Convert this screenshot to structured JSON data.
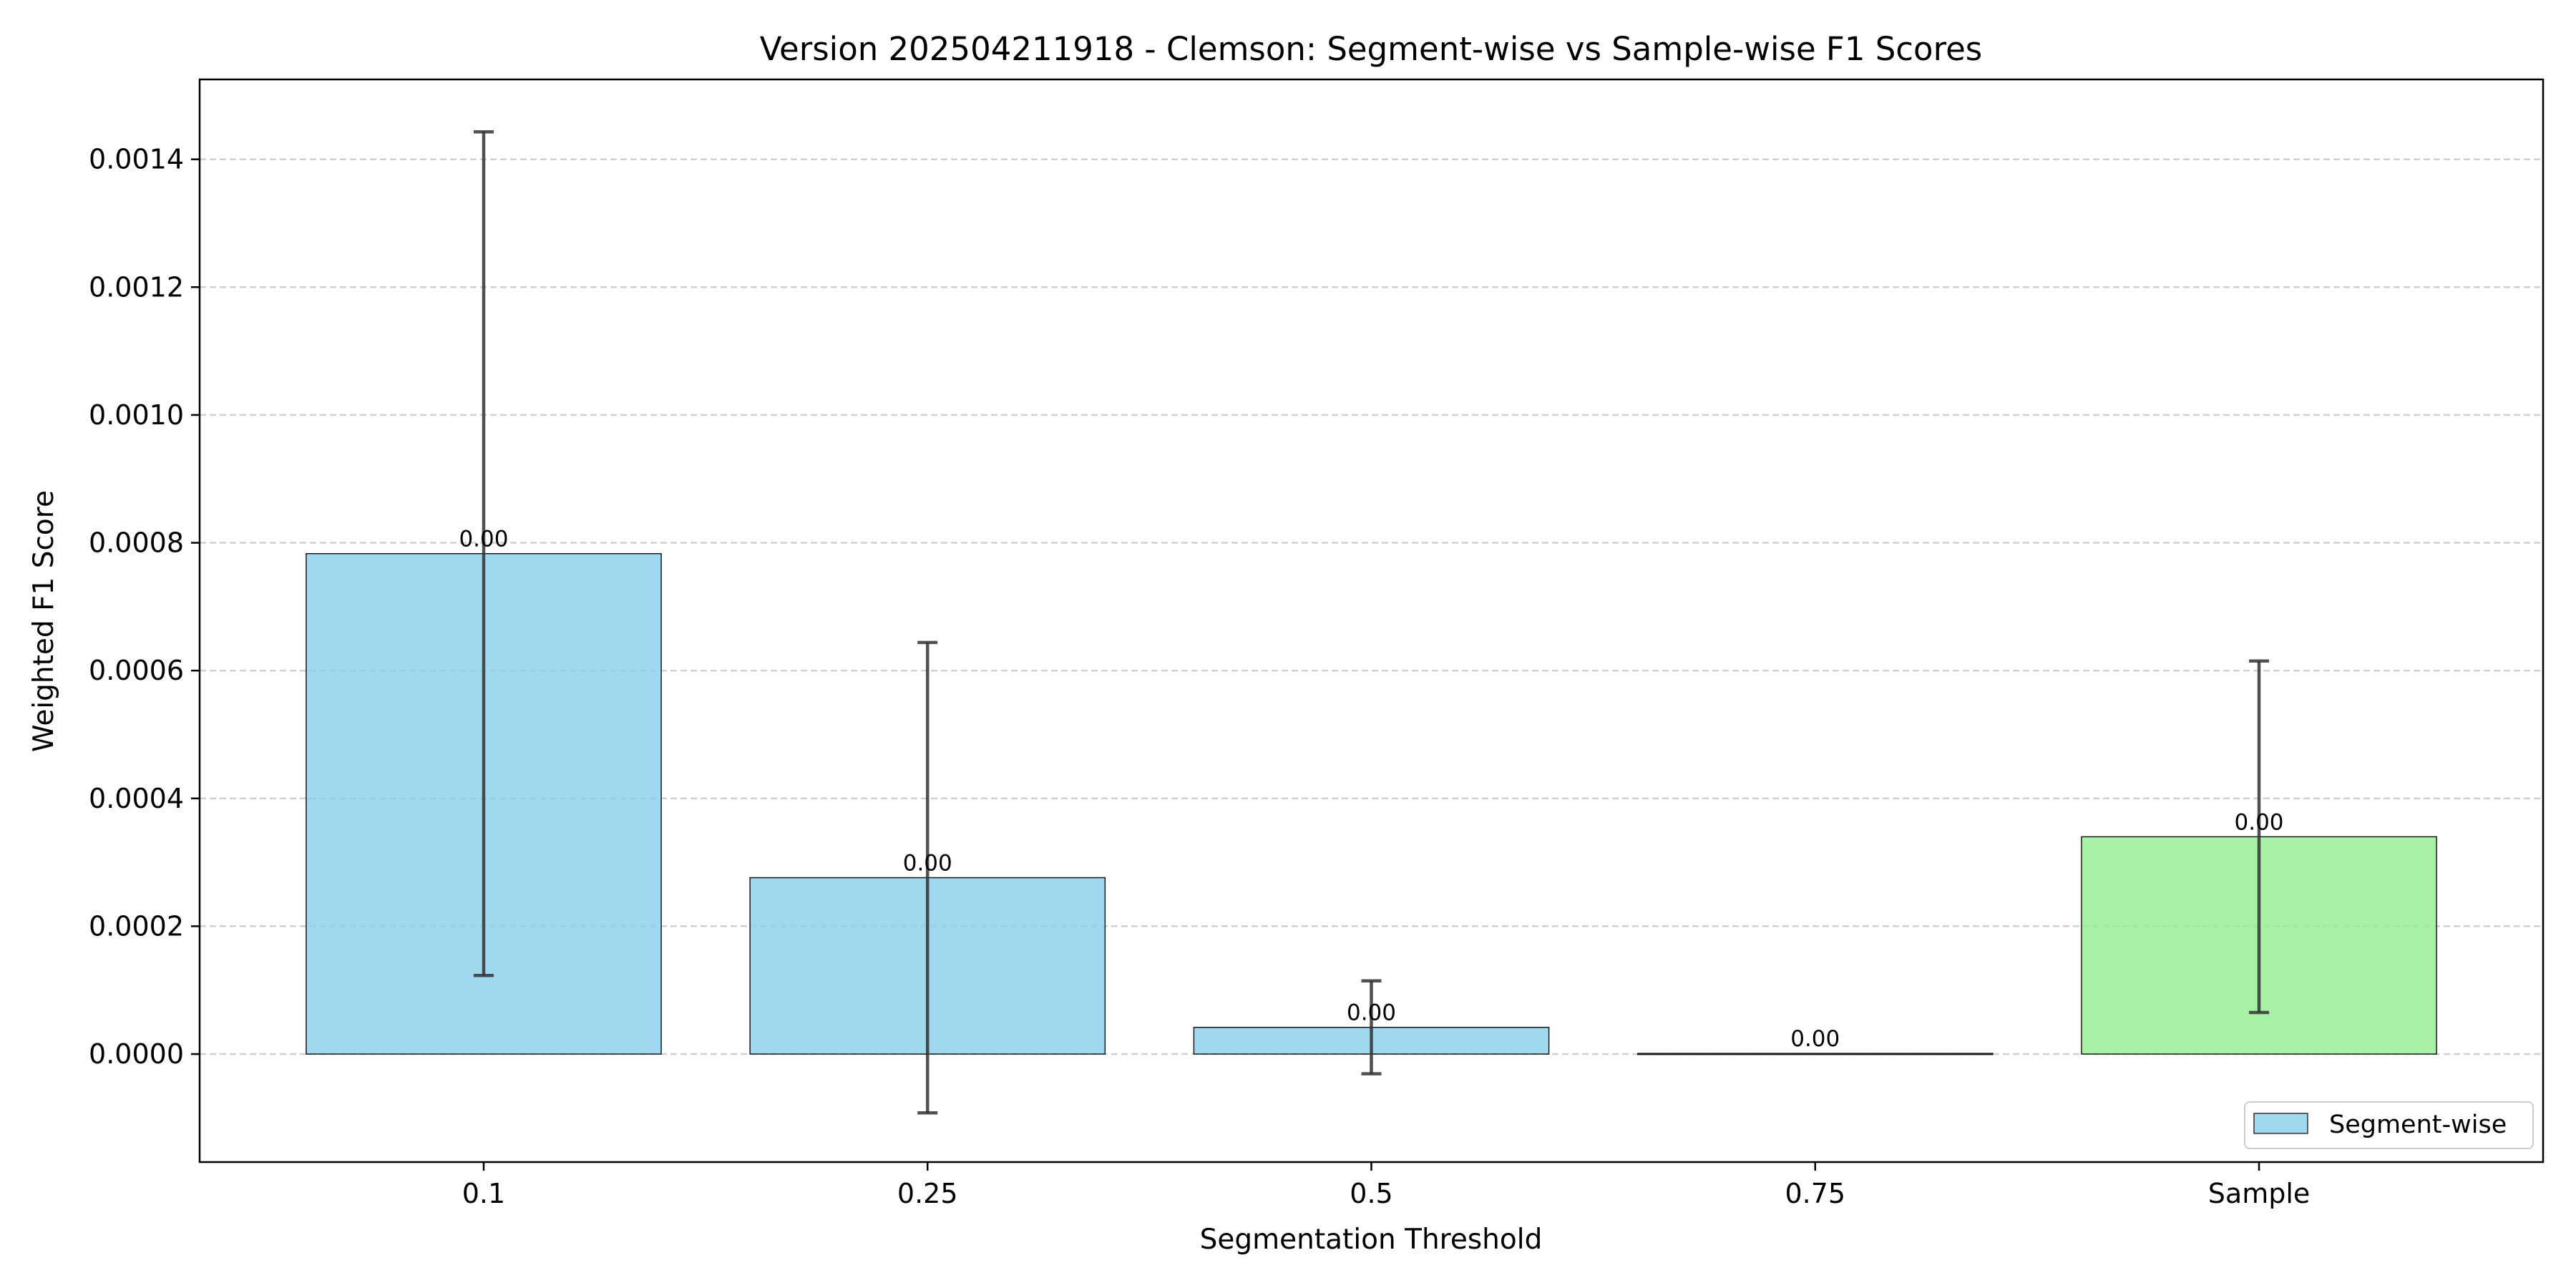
{
  "chart_data": {
    "type": "bar",
    "title": "Version 202504211918 - Clemson: Segment-wise vs Sample-wise F1 Scores",
    "xlabel": "Segmentation Threshold",
    "ylabel": "Weighted F1 Score",
    "categories": [
      "0.1",
      "0.25",
      "0.5",
      "0.75",
      "Sample"
    ],
    "values": [
      0.000783,
      0.000276,
      4.18e-05,
      1e-06,
      0.00034
    ],
    "error": [
      0.00066,
      0.000368,
      7.27e-05,
      0.0,
      0.000275
    ],
    "data_labels": [
      "0.00",
      "0.00",
      "0.00",
      "0.00",
      "0.00"
    ],
    "bar_colors": [
      "#87ceeb",
      "#87ceeb",
      "#87ceeb",
      "#87ceeb",
      "#90ee90"
    ],
    "bar_alpha": 0.8,
    "ylim": [
      -0.000169,
      0.001525
    ],
    "yticks": [
      0.0,
      0.0002,
      0.0004,
      0.0006,
      0.0008,
      0.001,
      0.0012,
      0.0014
    ],
    "ytick_labels": [
      "0.0000",
      "0.0002",
      "0.0004",
      "0.0006",
      "0.0008",
      "0.0010",
      "0.0012",
      "0.0014"
    ],
    "grid": {
      "axis": "y",
      "style": "dashed"
    },
    "legend": {
      "position": "bottom-right",
      "entries": [
        {
          "label": "Segment-wise",
          "color": "#87ceeb"
        }
      ]
    }
  }
}
